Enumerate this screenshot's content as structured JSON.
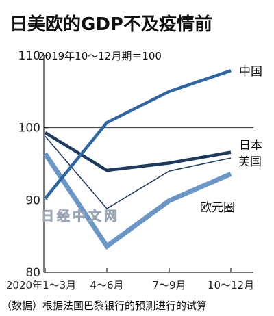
{
  "title": "日美欧的GDP不及疫情前",
  "subtitle": "2019年10～12月期＝100",
  "source": "（数据）根据法国巴黎银行的预测进行的试算",
  "watermark": "日经中文网",
  "chart_data": {
    "type": "line",
    "title": "日美欧的GDP不及疫情前",
    "subtitle": "2019年10～12月期＝100",
    "categories": [
      "2020年1～3月",
      "4～6月",
      "7～9月",
      "10～12月"
    ],
    "ylim": [
      80,
      110
    ],
    "yticks": [
      80,
      90,
      100,
      110
    ],
    "reference_line": 100,
    "grid": false,
    "legend": "inline labels at right end of lines",
    "series": [
      {
        "name": "中国",
        "values": [
          90.2,
          100.7,
          105.0,
          107.9
        ],
        "color": "#2c66a5",
        "width": 4.5
      },
      {
        "name": "日本",
        "values": [
          99.3,
          94.1,
          95.1,
          96.6
        ],
        "color": "#1b3a5e",
        "width": 4.5
      },
      {
        "name": "美国",
        "values": [
          98.8,
          88.8,
          94.0,
          95.8
        ],
        "color": "#1f3d66",
        "width": 1.6
      },
      {
        "name": "欧元圈",
        "values": [
          96.4,
          83.6,
          89.9,
          93.6
        ],
        "color": "#6a96c8",
        "width": 7
      }
    ]
  }
}
